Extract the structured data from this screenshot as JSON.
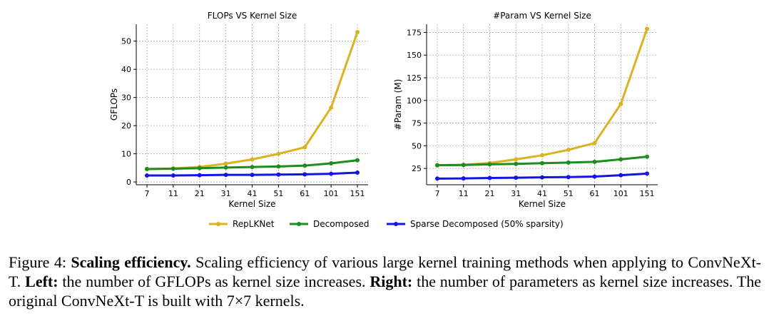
{
  "legend": [
    {
      "label": "RepLKNet",
      "color": "#DAB320"
    },
    {
      "label": "Decomposed",
      "color": "#1E8C1E"
    },
    {
      "label": "Sparse Decomposed (50% sparsity)",
      "color": "#1414E6"
    }
  ],
  "chart_data": [
    {
      "type": "line",
      "title": "FLOPs VS Kernel Size",
      "xlabel": "Kernel Size",
      "ylabel": "GFLOPs",
      "categories": [
        "7",
        "11",
        "21",
        "31",
        "41",
        "51",
        "61",
        "101",
        "151"
      ],
      "yticks": [
        0,
        10,
        20,
        30,
        40,
        50
      ],
      "ylim": [
        -1,
        56
      ],
      "grid": true,
      "series": [
        {
          "name": "RepLKNet",
          "color": "#DAB320",
          "values": [
            4.5,
            4.8,
            5.3,
            6.5,
            8.0,
            10.0,
            12.3,
            26.4,
            53.2
          ]
        },
        {
          "name": "Decomposed",
          "color": "#1E8C1E",
          "values": [
            4.6,
            4.7,
            4.9,
            5.1,
            5.3,
            5.5,
            5.8,
            6.6,
            7.7
          ]
        },
        {
          "name": "Sparse Decomposed (50% sparsity)",
          "color": "#1414E6",
          "values": [
            2.3,
            2.3,
            2.4,
            2.5,
            2.5,
            2.6,
            2.7,
            2.9,
            3.3
          ]
        }
      ]
    },
    {
      "type": "line",
      "title": "#Param VS Kernel Size",
      "xlabel": "Kernel Size",
      "ylabel": "#Param (M)",
      "categories": [
        "7",
        "11",
        "21",
        "31",
        "41",
        "51",
        "61",
        "101",
        "151"
      ],
      "yticks": [
        25,
        50,
        75,
        100,
        125,
        150,
        175
      ],
      "ylim": [
        7,
        184
      ],
      "grid": true,
      "series": [
        {
          "name": "RepLKNet",
          "color": "#DAB320",
          "values": [
            28.5,
            29.0,
            31.0,
            35.0,
            39.5,
            45.5,
            53.0,
            96.0,
            179.0
          ]
        },
        {
          "name": "Decomposed",
          "color": "#1E8C1E",
          "values": [
            28.5,
            28.8,
            29.5,
            30.0,
            30.8,
            31.5,
            32.3,
            35.0,
            38.0
          ]
        },
        {
          "name": "Sparse Decomposed (50% sparsity)",
          "color": "#1414E6",
          "values": [
            13.8,
            14.0,
            14.5,
            14.8,
            15.2,
            15.5,
            16.0,
            17.5,
            19.3
          ]
        }
      ]
    }
  ],
  "caption": {
    "figure_label": "Figure 4:",
    "bold_title": "Scaling efficiency.",
    "text1": "Scaling efficiency of various large kernel training methods when applying to ConvNeXt-T.",
    "left_label": "Left:",
    "text2": "the number of GFLOPs as kernel size increases.",
    "right_label": "Right:",
    "text3": "the number of parameters as kernel size increases. The original ConvNeXt-T is built with 7×7 kernels."
  }
}
